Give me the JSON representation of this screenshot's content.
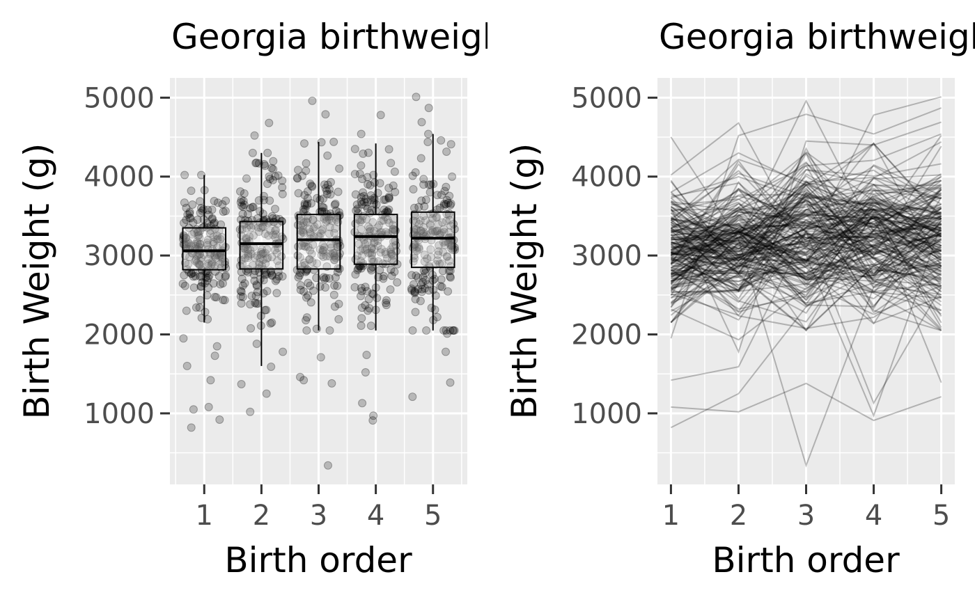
{
  "chart_data": [
    {
      "type": "box",
      "panel": "left",
      "title": "Georgia birthweight",
      "xlabel": "Birth order",
      "ylabel": "Birth Weight (g)",
      "xlim": [
        0.4,
        5.6
      ],
      "ylim": [
        100,
        5250
      ],
      "x_ticks": [
        1,
        2,
        3,
        4,
        5
      ],
      "y_ticks": [
        1000,
        2000,
        3000,
        4000,
        5000
      ],
      "grid": true,
      "jitter_points": true,
      "colors": {
        "panel_bg": "#ebebeb",
        "grid": "#ffffff",
        "points": "#000000",
        "box": "#000000",
        "box_fill": "#ffffff"
      },
      "boxes": [
        {
          "x": 1,
          "whisker_low": 2150,
          "q1": 2820,
          "median": 3060,
          "q3": 3350,
          "whisker_high": 4020
        },
        {
          "x": 2,
          "whisker_low": 1600,
          "q1": 2830,
          "median": 3150,
          "q3": 3430,
          "whisker_high": 4300
        },
        {
          "x": 3,
          "whisker_low": 2050,
          "q1": 2830,
          "median": 3200,
          "q3": 3520,
          "whisker_high": 4440
        },
        {
          "x": 4,
          "whisker_low": 2050,
          "q1": 2890,
          "median": 3240,
          "q3": 3520,
          "whisker_high": 4420
        },
        {
          "x": 5,
          "whisker_low": 2050,
          "q1": 2850,
          "median": 3220,
          "q3": 3550,
          "whisker_high": 4540
        }
      ],
      "outliers": [
        {
          "x": 1,
          "values": [
            1080,
            920,
            820,
            1050,
            1420,
            1600,
            1730,
            1850,
            1950
          ]
        },
        {
          "x": 2,
          "values": [
            1020,
            1250,
            1370,
            1590,
            1780,
            4680,
            4520
          ]
        },
        {
          "x": 3,
          "values": [
            340,
            1380,
            1420,
            1460,
            1710,
            4790,
            4960
          ]
        },
        {
          "x": 4,
          "values": [
            910,
            970,
            1130,
            1520,
            1740,
            4780,
            4540
          ]
        },
        {
          "x": 5,
          "values": [
            1210,
            1390,
            1780,
            2010,
            4690,
            4870,
            5010
          ]
        }
      ]
    },
    {
      "type": "line",
      "panel": "right",
      "title": "Georgia birthweight",
      "xlabel": "Birth order",
      "ylabel": "Birth Weight (g)",
      "xlim": [
        0.8,
        5.2
      ],
      "ylim": [
        100,
        5250
      ],
      "x_ticks": [
        1,
        2,
        3,
        4,
        5
      ],
      "y_ticks": [
        1000,
        2000,
        3000,
        4000,
        5000
      ],
      "grid": true,
      "colors": {
        "panel_bg": "#ebebeb",
        "grid": "#ffffff",
        "lines": "#000000"
      },
      "note_lines": "each line connects the five birth weights of one mother (spaghetti plot)",
      "x": [
        1,
        2,
        3,
        4,
        5
      ],
      "series": [
        {
          "values": [
            820,
            1250,
            2350,
            3100,
            3600
          ]
        },
        {
          "values": [
            1080,
            1020,
            1380,
            910,
            1210
          ]
        },
        {
          "values": [
            3000,
            3200,
            340,
            2600,
            3100
          ]
        },
        {
          "values": [
            4500,
            3200,
            4960,
            3300,
            2800
          ]
        },
        {
          "values": [
            4020,
            4680,
            3100,
            4780,
            5010
          ]
        },
        {
          "values": [
            1950,
            4520,
            4790,
            4540,
            4870
          ]
        },
        {
          "values": [
            2600,
            3000,
            2700,
            3500,
            1390
          ]
        },
        {
          "values": [
            1420,
            1590,
            3300,
            1130,
            2600
          ]
        },
        {
          "values": [
            3600,
            1780,
            4450,
            4400,
            4690
          ]
        },
        {
          "values": [
            2150,
            3300,
            3000,
            970,
            3400
          ]
        }
      ]
    }
  ]
}
